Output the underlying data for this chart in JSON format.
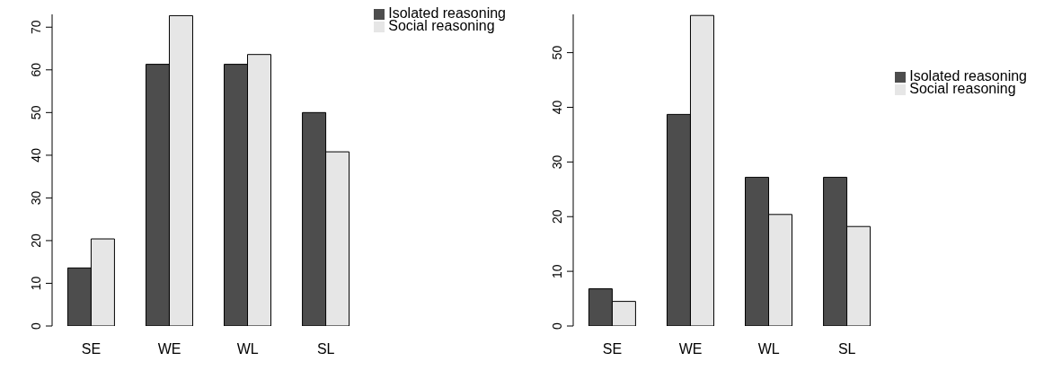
{
  "chart_data": [
    {
      "type": "bar",
      "categories": [
        "SE",
        "WE",
        "WL",
        "SL"
      ],
      "series": [
        {
          "name": "Isolated reasoning",
          "color": "#4d4d4d",
          "values": [
            13.6,
            61.3,
            61.3,
            50.0
          ]
        },
        {
          "name": "Social reasoning",
          "color": "#e6e6e6",
          "values": [
            20.4,
            72.7,
            63.6,
            40.8
          ]
        }
      ],
      "ylim": [
        0,
        73
      ],
      "yticks": [
        0,
        10,
        20,
        30,
        40,
        50,
        60,
        70
      ],
      "grid": false,
      "legend": "top right"
    },
    {
      "type": "bar",
      "categories": [
        "SE",
        "WE",
        "WL",
        "SL"
      ],
      "series": [
        {
          "name": "Isolated reasoning",
          "color": "#4d4d4d",
          "values": [
            6.8,
            38.7,
            27.2,
            27.2
          ]
        },
        {
          "name": "Social reasoning",
          "color": "#e6e6e6",
          "values": [
            4.5,
            56.8,
            20.4,
            18.2
          ]
        }
      ],
      "ylim": [
        0,
        57
      ],
      "yticks": [
        0,
        10,
        20,
        30,
        40,
        50
      ],
      "grid": false,
      "legend": "top right"
    }
  ]
}
